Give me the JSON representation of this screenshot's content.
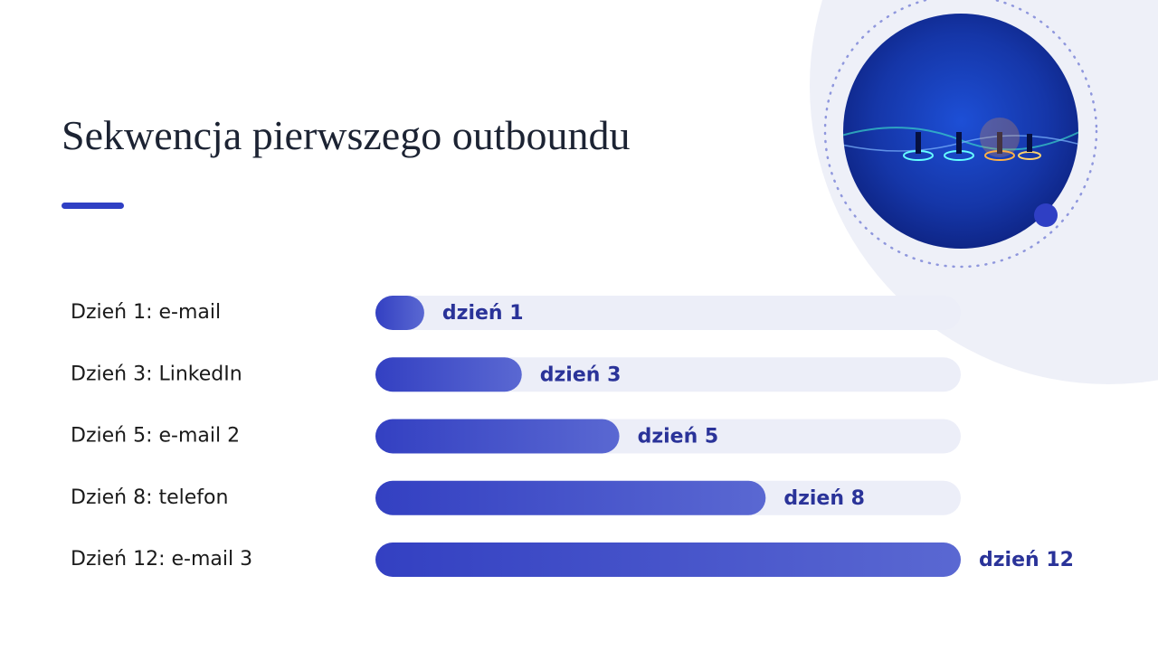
{
  "chart_data": {
    "type": "bar",
    "orientation": "horizontal",
    "title": "Sekwencja pierwszego outboundu",
    "categories": [
      "Dzień 1: e-mail",
      "Dzień 3: LinkedIn",
      "Dzień 5: e-mail 2",
      "Dzień 8: telefon",
      "Dzień 12: e-mail 3"
    ],
    "values": [
      1,
      3,
      5,
      8,
      12
    ],
    "value_labels": [
      "dzień 1",
      "dzień 3",
      "dzień 5",
      "dzień 8",
      "dzień 12"
    ],
    "xlim": [
      0,
      12
    ],
    "color": "#3340c2"
  }
}
